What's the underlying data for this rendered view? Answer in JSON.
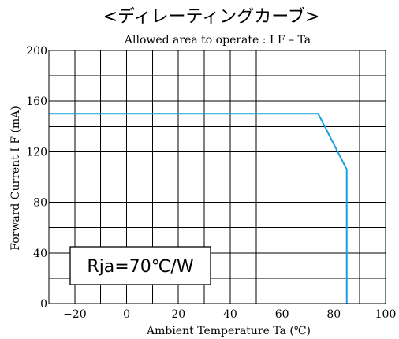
{
  "chart_data": {
    "type": "line",
    "heading": "<ディレーティングカーブ>",
    "title": "Allowed area to operate : I F – Ta",
    "xlabel": "Ambient Temperature Ta (℃)",
    "ylabel": "Forward Current I F (mA)",
    "xlim": [
      -30,
      100
    ],
    "ylim": [
      0,
      200
    ],
    "x_ticks": [
      -20,
      0,
      20,
      40,
      60,
      80,
      100
    ],
    "y_ticks": [
      0,
      40,
      80,
      120,
      160,
      200
    ],
    "x_tick_labels": [
      "−20",
      "0",
      "20",
      "40",
      "60",
      "80",
      "100"
    ],
    "y_tick_labels": [
      "0",
      "40",
      "80",
      "120",
      "160",
      "200"
    ],
    "grid": true,
    "series": [
      {
        "color": "#1aa0e0",
        "x": [
          -30,
          74,
          85,
          85
        ],
        "y": [
          150,
          150,
          106,
          0
        ]
      }
    ],
    "annotation": "Rja=70℃/W"
  }
}
